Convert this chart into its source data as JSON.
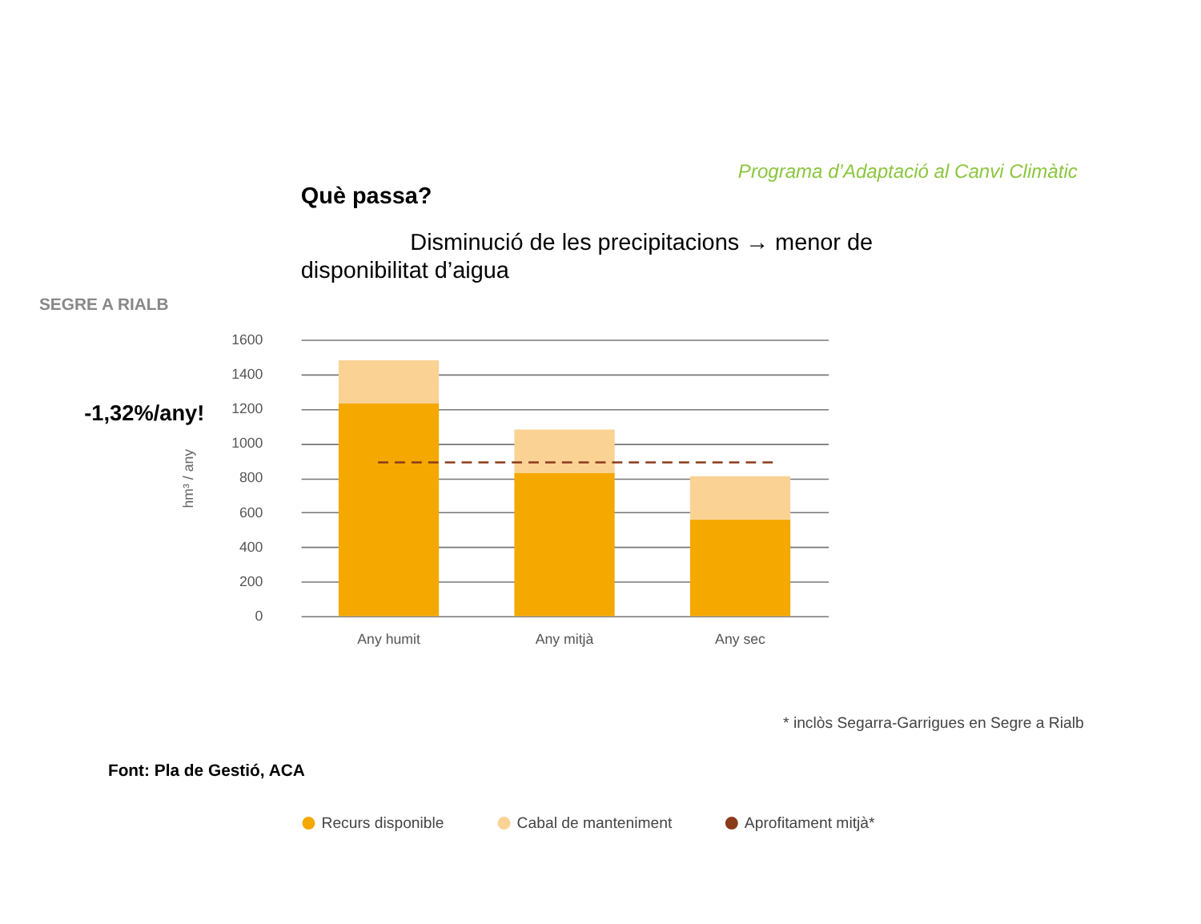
{
  "chart_data": {
    "type": "bar",
    "title": "SEGRE A RIALB",
    "ylabel": "hm³ / any",
    "categories": [
      "Any humit",
      "Any mitjà",
      "Any sec"
    ],
    "stacked": true,
    "series": [
      {
        "name": "Recurs disponible",
        "color": "#f5a800",
        "values": [
          1230,
          830,
          560
        ]
      },
      {
        "name": "Cabal de manteniment",
        "color": "#fad294",
        "values": [
          250,
          250,
          250
        ]
      }
    ],
    "ylim": [
      0,
      1600
    ],
    "yticks": [
      0,
      200,
      400,
      600,
      800,
      1000,
      1200,
      1400,
      1600
    ],
    "grid": "y",
    "ref_lines": [
      {
        "axis": "y",
        "value": 890,
        "label": "Aprofitament mitjà*",
        "color": "#8b3a1a",
        "line_style": "dashed"
      }
    ],
    "legend": "bottom",
    "annotations": [
      "Programa d’Adaptació al Canvi Climàtic",
      "Què passa?",
      "Disminució de les precipitacions → menor de disponibilitat d’aigua",
      "-1,32%/any!",
      "* inclòs Segarra-Garrigues en Segre a Rialb",
      "Font: Pla de Gestió, ACA"
    ]
  }
}
